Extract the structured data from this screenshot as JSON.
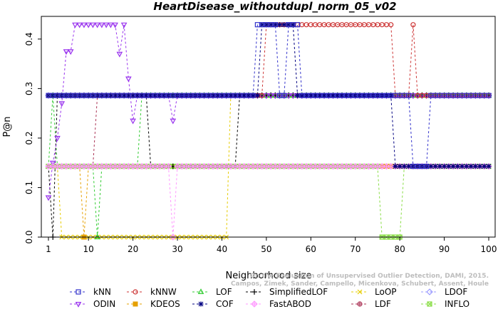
{
  "chart_data": {
    "type": "line",
    "title": "HeartDisease_withoutdupl_norm_05_v02",
    "xlabel": "Neighborhood size",
    "ylabel": "P@n",
    "xlim": [
      1,
      100
    ],
    "ylim": [
      0,
      0.43
    ],
    "x_ticks": [
      1,
      10,
      20,
      30,
      40,
      50,
      60,
      70,
      80,
      90,
      100
    ],
    "y_ticks": [
      "0.0",
      "0.1",
      "0.2",
      "0.3",
      "0.4"
    ],
    "y_tick_values": [
      0,
      0.1,
      0.2,
      0.3,
      0.4
    ],
    "grid": false,
    "legend_position": "bottom",
    "watermark": [
      "Campos, Zimek, Sander, Campello, Micenkova, Schubert, Assent, Houle",
      "On the Evaluation of Unsupervised Outlier Detection, DAMI, 2015."
    ],
    "series": [
      {
        "name": "kNN",
        "color": "#3333cc",
        "marker": "square",
        "segments": [
          [
            1,
            0.286
          ],
          [
            47,
            0.286
          ],
          [
            48,
            0.429
          ],
          [
            52,
            0.429
          ],
          [
            53,
            0.286
          ],
          [
            55,
            0.429
          ],
          [
            57,
            0.429
          ],
          [
            58,
            0.286
          ],
          [
            82,
            0.286
          ],
          [
            83,
            0.143
          ],
          [
            86,
            0.143
          ],
          [
            87,
            0.286
          ],
          [
            100,
            0.286
          ]
        ]
      },
      {
        "name": "kNNW",
        "color": "#cc3333",
        "marker": "circle",
        "segments": [
          [
            1,
            0.286
          ],
          [
            49,
            0.286
          ],
          [
            50,
            0.429
          ],
          [
            78,
            0.429
          ],
          [
            79,
            0.286
          ],
          [
            82,
            0.286
          ],
          [
            83,
            0.429
          ],
          [
            84,
            0.286
          ],
          [
            100,
            0.286
          ]
        ]
      },
      {
        "name": "LOF",
        "color": "#33cc33",
        "marker": "triangle",
        "segments": [
          [
            1,
            0.143
          ],
          [
            2,
            0.286
          ],
          [
            3,
            0.143
          ],
          [
            11,
            0.143
          ],
          [
            12,
            0.0
          ],
          [
            13,
            0.143
          ],
          [
            21,
            0.143
          ],
          [
            22,
            0.286
          ],
          [
            100,
            0.286
          ]
        ]
      },
      {
        "name": "SimplifiedLOF",
        "color": "#000000",
        "marker": "plus",
        "segments": [
          [
            1,
            0.143
          ],
          [
            2,
            0.0
          ],
          [
            3,
            0.286
          ],
          [
            23,
            0.286
          ],
          [
            24,
            0.143
          ],
          [
            43,
            0.143
          ],
          [
            44,
            0.286
          ],
          [
            100,
            0.286
          ]
        ]
      },
      {
        "name": "LoOP",
        "color": "#e6cc00",
        "marker": "x",
        "segments": [
          [
            1,
            0.143
          ],
          [
            3,
            0.143
          ],
          [
            4,
            0.0
          ],
          [
            41,
            0.0
          ],
          [
            42,
            0.286
          ],
          [
            100,
            0.286
          ]
        ]
      },
      {
        "name": "LDOF",
        "color": "#9999ff",
        "marker": "diamond",
        "segments": [
          [
            1,
            0.286
          ],
          [
            100,
            0.286
          ]
        ]
      },
      {
        "name": "ODIN",
        "color": "#9933ee",
        "marker": "triangle-down",
        "segments": [
          [
            1,
            0.08
          ],
          [
            2,
            0.15
          ],
          [
            3,
            0.2
          ],
          [
            4,
            0.27
          ],
          [
            5,
            0.375
          ],
          [
            6,
            0.375
          ],
          [
            7,
            0.429
          ],
          [
            16,
            0.429
          ],
          [
            17,
            0.37
          ],
          [
            18,
            0.429
          ],
          [
            19,
            0.32
          ],
          [
            20,
            0.235
          ],
          [
            21,
            0.286
          ],
          [
            28,
            0.286
          ],
          [
            29,
            0.235
          ],
          [
            30,
            0.286
          ],
          [
            100,
            0.286
          ]
        ]
      },
      {
        "name": "KDEOS",
        "color": "#e6a000",
        "marker": "square-filled",
        "segments": [
          [
            1,
            0.143
          ],
          [
            8,
            0.143
          ],
          [
            9,
            0.0
          ],
          [
            10,
            0.143
          ],
          [
            100,
            0.143
          ]
        ]
      },
      {
        "name": "COF",
        "color": "#000080",
        "marker": "star",
        "segments": [
          [
            1,
            0.286
          ],
          [
            48,
            0.286
          ],
          [
            49,
            0.429
          ],
          [
            56,
            0.429
          ],
          [
            57,
            0.286
          ],
          [
            78,
            0.286
          ],
          [
            79,
            0.143
          ],
          [
            100,
            0.143
          ]
        ]
      },
      {
        "name": "FastABOD",
        "color": "#ff99ff",
        "marker": "diamond-plus",
        "segments": [
          [
            1,
            0.143
          ],
          [
            28,
            0.143
          ],
          [
            29,
            0.0
          ],
          [
            30,
            0.143
          ],
          [
            100,
            0.143
          ]
        ]
      },
      {
        "name": "LDF",
        "color": "#aa3355",
        "marker": "circle-plus",
        "segments": [
          [
            1,
            0.143
          ],
          [
            11,
            0.143
          ],
          [
            12,
            0.286
          ],
          [
            100,
            0.286
          ]
        ]
      },
      {
        "name": "INFLO",
        "color": "#88dd44",
        "marker": "square-x",
        "segments": [
          [
            1,
            0.143
          ],
          [
            75,
            0.143
          ],
          [
            76,
            0.0
          ],
          [
            80,
            0.0
          ],
          [
            81,
            0.143
          ],
          [
            100,
            0.143
          ]
        ]
      }
    ]
  }
}
